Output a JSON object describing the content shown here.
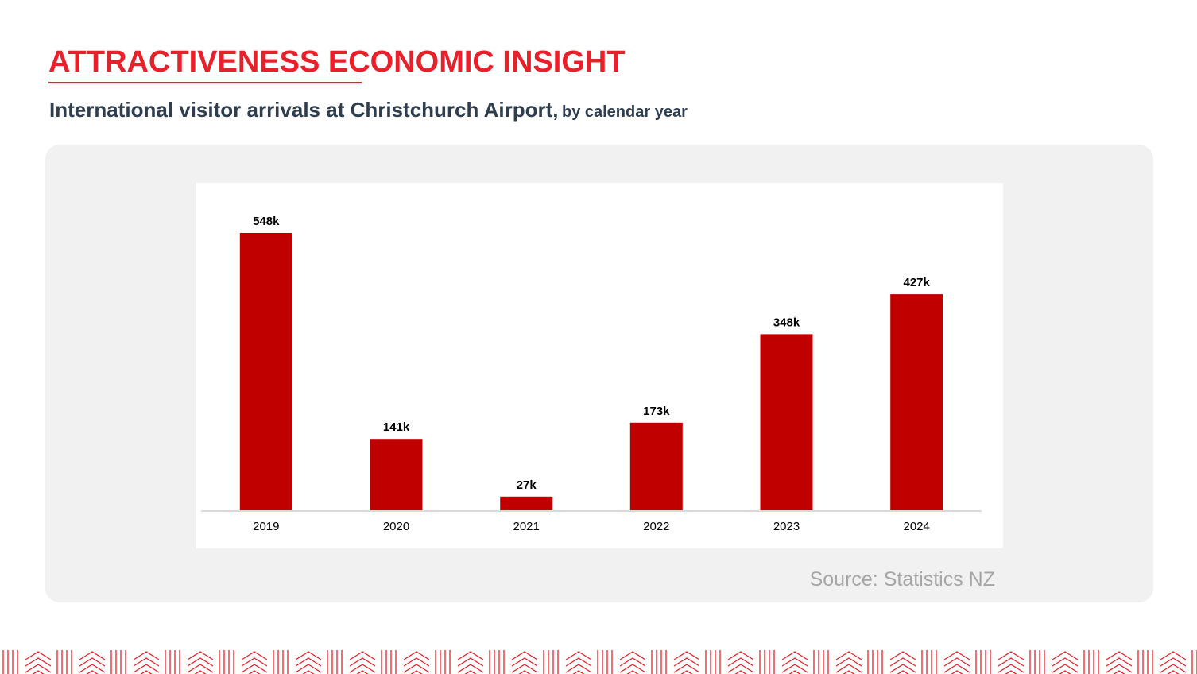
{
  "header": {
    "title": "ATTRACTIVENESS ECONOMIC INSIGHT",
    "subtitle_main": "International visitor arrivals at Christchurch Airport,",
    "subtitle_suffix": "by calendar year"
  },
  "footer": {
    "source": "Source: Statistics NZ"
  },
  "colors": {
    "accent": "#e8202a",
    "bar": "#c00000",
    "subtitle": "#2e3e4e"
  },
  "chart_data": {
    "type": "bar",
    "title": "International visitor arrivals at Christchurch Airport, by calendar year",
    "xlabel": "",
    "ylabel": "",
    "categories": [
      "2019",
      "2020",
      "2021",
      "2022",
      "2023",
      "2024"
    ],
    "values": [
      548,
      141,
      27,
      173,
      348,
      427
    ],
    "value_labels": [
      "548k",
      "141k",
      "27k",
      "173k",
      "348k",
      "427k"
    ],
    "unit": "thousands of visitor arrivals",
    "ylim": [
      0,
      548
    ],
    "grid": false,
    "legend": "none"
  }
}
